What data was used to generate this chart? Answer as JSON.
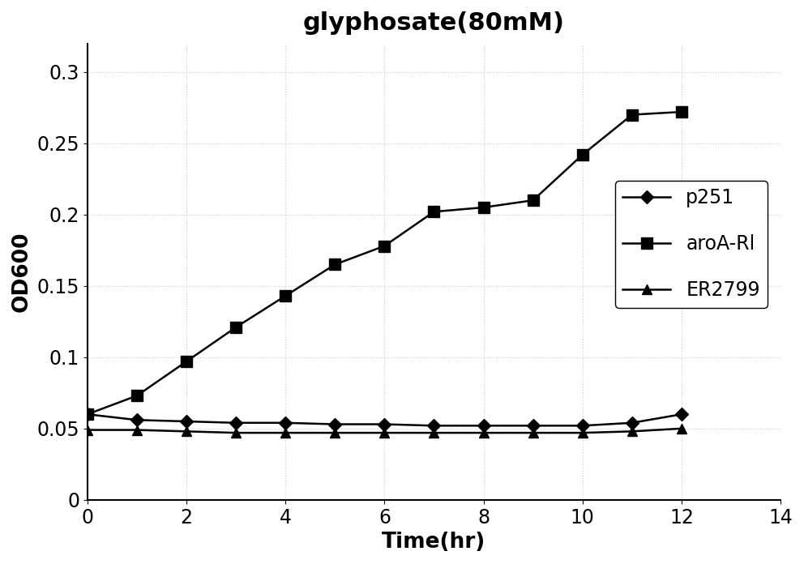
{
  "title": "glyphosate(80mM)",
  "xlabel": "Time(hr)",
  "ylabel": "OD600",
  "xlim": [
    0,
    14
  ],
  "ylim": [
    0,
    0.32
  ],
  "yticks": [
    0,
    0.05,
    0.1,
    0.15,
    0.2,
    0.25,
    0.3
  ],
  "xticks": [
    0,
    2,
    4,
    6,
    8,
    10,
    12,
    14
  ],
  "series": [
    {
      "label": "p251",
      "x": [
        0,
        1,
        2,
        3,
        4,
        5,
        6,
        7,
        8,
        9,
        10,
        11,
        12
      ],
      "y": [
        0.06,
        0.056,
        0.055,
        0.054,
        0.054,
        0.053,
        0.053,
        0.052,
        0.052,
        0.052,
        0.052,
        0.054,
        0.06
      ],
      "color": "#000000",
      "marker": "D",
      "markersize": 8,
      "linewidth": 1.8
    },
    {
      "label": "aroA-Rl",
      "x": [
        0,
        1,
        2,
        3,
        4,
        5,
        6,
        7,
        8,
        9,
        10,
        11,
        12
      ],
      "y": [
        0.06,
        0.073,
        0.097,
        0.121,
        0.143,
        0.165,
        0.178,
        0.202,
        0.205,
        0.21,
        0.242,
        0.27,
        0.272
      ],
      "color": "#000000",
      "marker": "s",
      "markersize": 10,
      "linewidth": 1.8
    },
    {
      "label": "ER2799",
      "x": [
        0,
        1,
        2,
        3,
        4,
        5,
        6,
        7,
        8,
        9,
        10,
        11,
        12
      ],
      "y": [
        0.049,
        0.049,
        0.048,
        0.047,
        0.047,
        0.047,
        0.047,
        0.047,
        0.047,
        0.047,
        0.047,
        0.048,
        0.05
      ],
      "color": "#000000",
      "marker": "^",
      "markersize": 9,
      "linewidth": 1.8
    }
  ],
  "legend_fontsize": 17,
  "title_fontsize": 22,
  "axis_label_fontsize": 19,
  "tick_fontsize": 17
}
